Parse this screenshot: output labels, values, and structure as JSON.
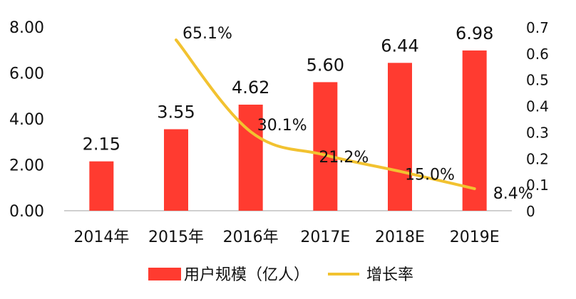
{
  "chart_data": {
    "type": "bar",
    "categories": [
      "2014年",
      "2015年",
      "2016年",
      "2017E",
      "2018E",
      "2019E"
    ],
    "series": [
      {
        "name": "用户规模（亿人）",
        "type": "bar",
        "axis": "left",
        "color": "#ff3b30",
        "values": [
          2.15,
          3.55,
          4.62,
          5.6,
          6.44,
          6.98
        ],
        "labels": [
          "2.15",
          "3.55",
          "4.62",
          "5.60",
          "6.44",
          "6.98"
        ]
      },
      {
        "name": "增长率",
        "type": "line",
        "axis": "right",
        "color": "#f2c230",
        "values": [
          null,
          0.651,
          0.301,
          0.212,
          0.15,
          0.084
        ],
        "labels": [
          "",
          "65.1%",
          "30.1%",
          "21.2%",
          "15.0%",
          "8.4%"
        ]
      }
    ],
    "y_left": {
      "ylim": [
        0,
        8
      ],
      "ticks": [
        0,
        2,
        4,
        6,
        8
      ],
      "tick_labels": [
        "0.00",
        "2.00",
        "4.00",
        "6.00",
        "8.00"
      ]
    },
    "y_right": {
      "ylim": [
        0,
        0.7
      ],
      "ticks": [
        0,
        0.1,
        0.2,
        0.3,
        0.4,
        0.5,
        0.6,
        0.7
      ],
      "tick_labels": [
        "0",
        "0.1",
        "0.2",
        "0.3",
        "0.4",
        "0.5",
        "0.6",
        "0.7"
      ]
    },
    "grid": false,
    "legend_position": "bottom-center"
  }
}
